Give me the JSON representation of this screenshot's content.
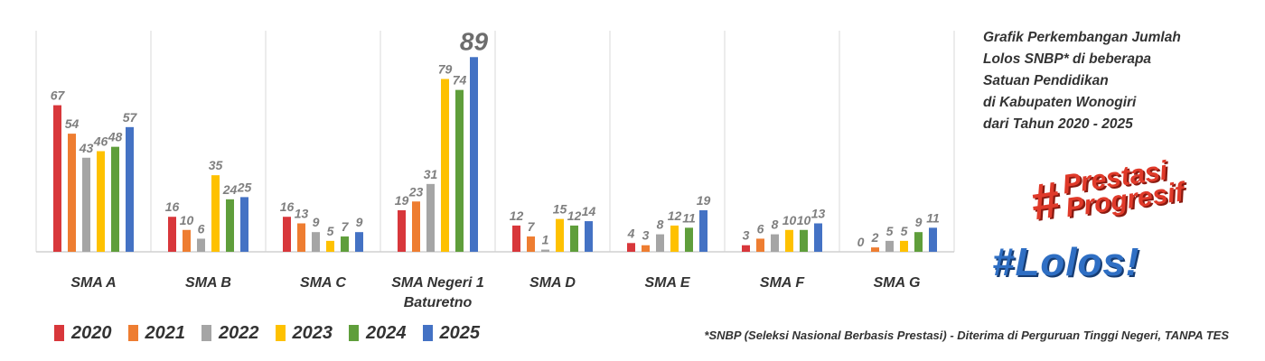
{
  "chart_data": {
    "type": "bar",
    "title_lines": [
      "Grafik Perkembangan Jumlah",
      "Lolos SNBP* di beberapa",
      "Satuan Pendidikan",
      "di Kabupaten Wonogiri",
      "dari Tahun 2020 - 2025"
    ],
    "categories": [
      [
        "SMA A"
      ],
      [
        "SMA B"
      ],
      [
        "SMA C"
      ],
      [
        "SMA Negeri 1",
        "Baturetno"
      ],
      [
        "SMA D"
      ],
      [
        "SMA E"
      ],
      [
        "SMA F"
      ],
      [
        "SMA G"
      ]
    ],
    "series": [
      {
        "name": "2020",
        "color": "#d8373b",
        "values": [
          67,
          16,
          16,
          19,
          12,
          4,
          3,
          0
        ]
      },
      {
        "name": "2021",
        "color": "#ee7d31",
        "values": [
          54,
          10,
          13,
          23,
          7,
          3,
          6,
          2
        ]
      },
      {
        "name": "2022",
        "color": "#a5a5a5",
        "values": [
          43,
          6,
          9,
          31,
          1,
          8,
          8,
          5
        ]
      },
      {
        "name": "2023",
        "color": "#fec100",
        "values": [
          46,
          35,
          5,
          79,
          15,
          12,
          10,
          5
        ]
      },
      {
        "name": "2024",
        "color": "#5f9e3b",
        "values": [
          48,
          24,
          7,
          74,
          12,
          11,
          10,
          9
        ]
      },
      {
        "name": "2025",
        "color": "#4472c4",
        "values": [
          57,
          25,
          9,
          89,
          14,
          19,
          13,
          11
        ]
      }
    ],
    "highlight_label": {
      "category_index": 3,
      "series_index": 5
    },
    "ylim": [
      0,
      92
    ],
    "grid": false,
    "legend_position": "bottom-left"
  },
  "hashtags": {
    "prestasi_hash": "#",
    "prestasi_line1": "Prestasi",
    "prestasi_line2": "Progresif",
    "lolos": "#Lolos!"
  },
  "footnote": "*SNBP (Seleksi Nasional Berbasis Prestasi) - Diterima di Perguruan Tinggi Negeri, TANPA TES"
}
